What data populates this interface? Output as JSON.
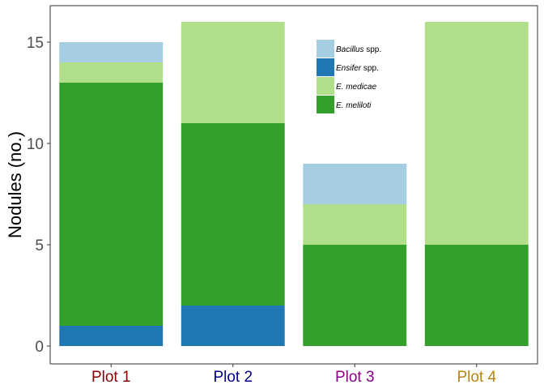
{
  "chart_data": {
    "type": "bar",
    "stacked": true,
    "title": "",
    "xlabel": "",
    "ylabel": "Nodules (no.)",
    "ylim": [
      0,
      16.6
    ],
    "yticks": [
      0,
      5,
      10,
      15
    ],
    "grid": false,
    "legend_position": "top-right-inside",
    "categories": [
      "Plot 1",
      "Plot 2",
      "Plot 3",
      "Plot 4"
    ],
    "category_colors": [
      "#8b0000",
      "#00008b",
      "#8b008b",
      "#b8860b"
    ],
    "series": [
      {
        "name": "E. meliloti",
        "name_italic": "E. meliloti",
        "name_suffix": "",
        "color": "#33a02c",
        "values": [
          12,
          9,
          5,
          5
        ]
      },
      {
        "name": "Ensifer spp.",
        "name_italic": "Ensifer",
        "name_suffix": " spp.",
        "color": "#1f78b4",
        "values": [
          1,
          2,
          0,
          0
        ]
      },
      {
        "name": "E. medicae",
        "name_italic": "E. medicae",
        "name_suffix": "",
        "color": "#b2df8a",
        "values": [
          1,
          5,
          2,
          11
        ]
      },
      {
        "name": "Bacillus spp.",
        "name_italic": "Bacillus",
        "name_suffix": " spp.",
        "color": "#a6cee3",
        "values": [
          1,
          0,
          2,
          0
        ]
      }
    ],
    "stack_order": [
      "Ensifer spp.",
      "E. meliloti",
      "E. medicae",
      "Bacillus spp."
    ],
    "legend_order": [
      "Bacillus spp.",
      "Ensifer spp.",
      "E. medicae",
      "E. meliloti"
    ]
  }
}
